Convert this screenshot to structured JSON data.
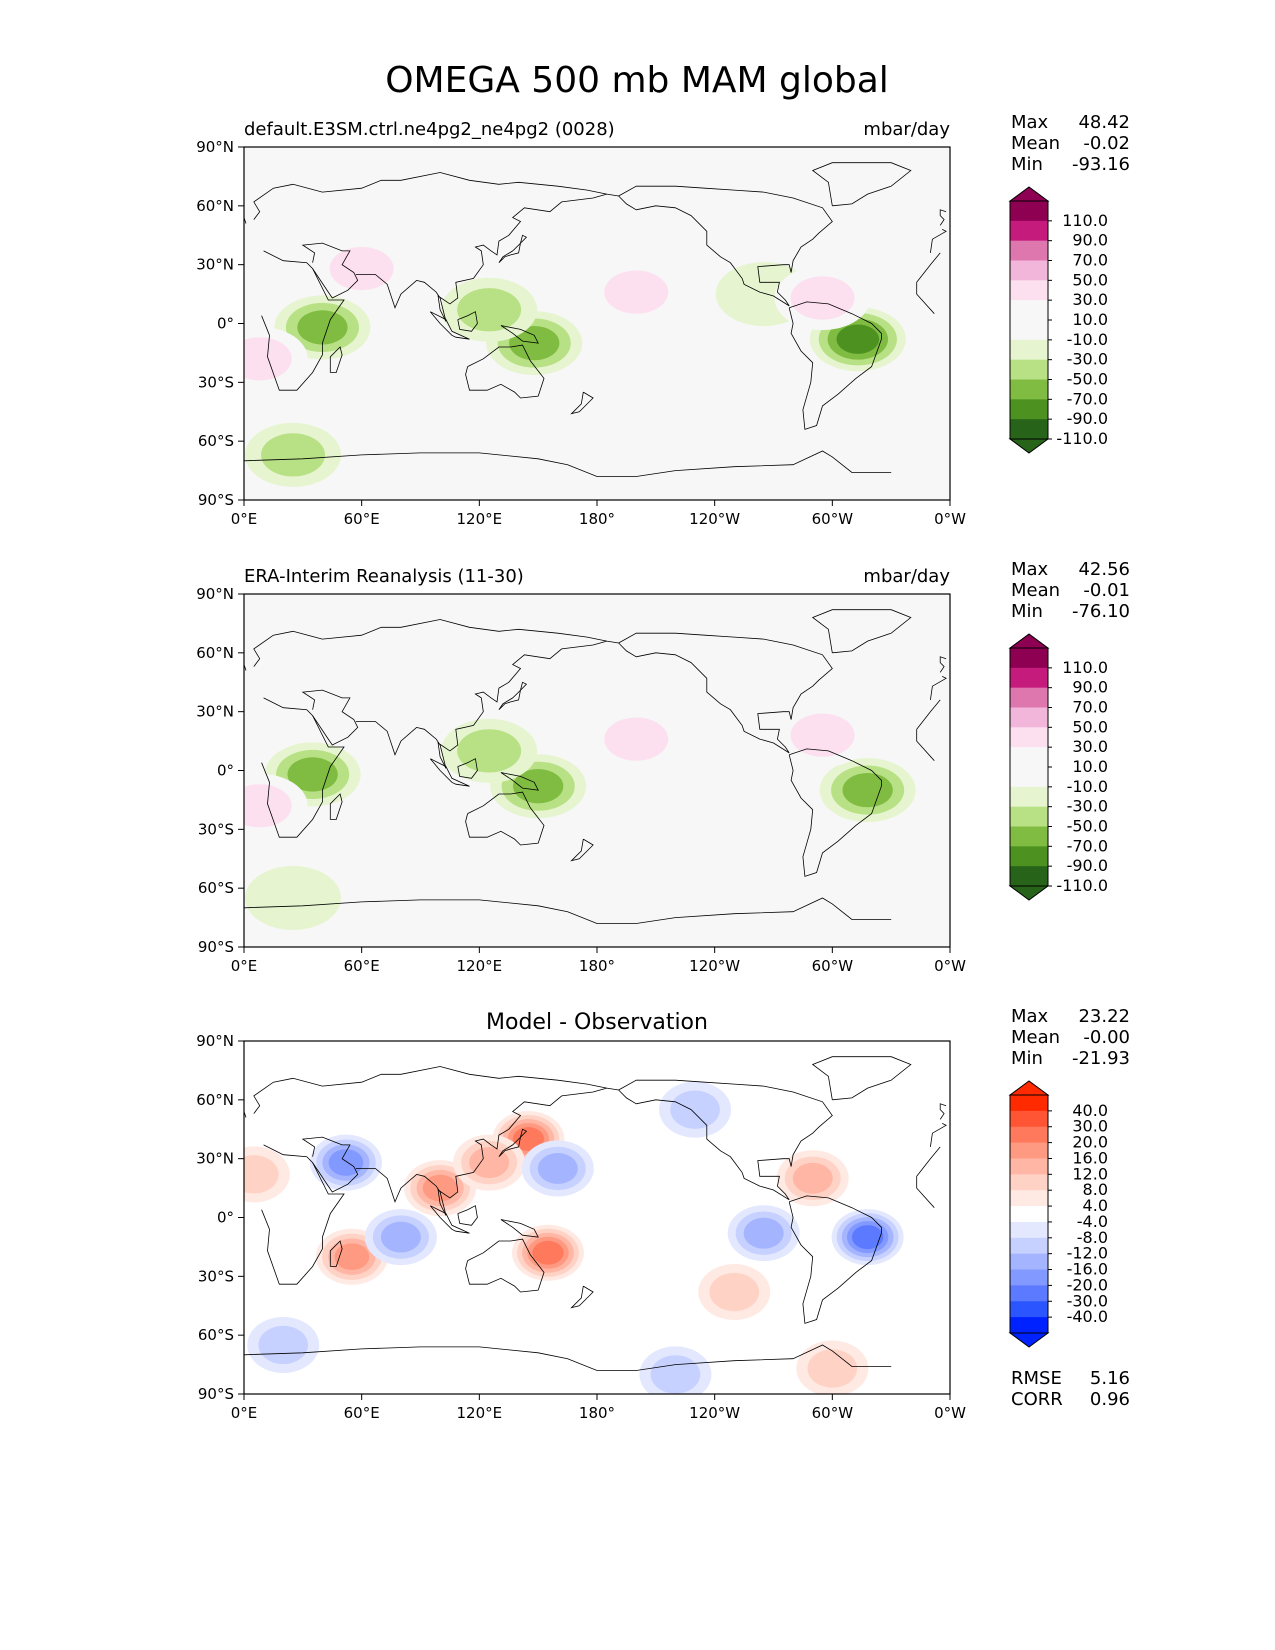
{
  "title": "OMEGA 500 mb MAM global",
  "colors": {
    "land_outline": "#000000",
    "background": "#f7f7f7",
    "diff_background": "#ffffff"
  },
  "lon_ticks": [
    "0°E",
    "60°E",
    "120°E",
    "180°",
    "120°W",
    "60°W",
    "0°W"
  ],
  "lat_ticks": [
    "90°N",
    "60°N",
    "30°N",
    "0°",
    "30°S",
    "60°S",
    "90°S"
  ],
  "chart_data": [
    {
      "type": "heatmap",
      "left_title": "default.E3SM.ctrl.ne4pg2_ne4pg2 (0028)",
      "center_title": "",
      "units": "mbar/day",
      "stats": [
        {
          "label": "Max",
          "value": "48.42"
        },
        {
          "label": "Mean",
          "value": "-0.02"
        },
        {
          "label": "Min",
          "value": "-93.16"
        }
      ],
      "colorbar": {
        "levels": [
          "110.0",
          "90.0",
          "70.0",
          "50.0",
          "30.0",
          "10.0",
          "-10.0",
          "-30.0",
          "-50.0",
          "-70.0",
          "-90.0",
          "-110.0"
        ],
        "colors": [
          "#8e0152",
          "#c51b7d",
          "#de77ae",
          "#f1b6da",
          "#fde0ef",
          "#f7f7f7",
          "#f7f7f7",
          "#e6f5d0",
          "#b8e186",
          "#7fbc41",
          "#4d9221",
          "#276419"
        ]
      },
      "fields": [
        {
          "lon": 40,
          "lat": -2,
          "value": -60
        },
        {
          "lon": 148,
          "lat": -10,
          "value": -55
        },
        {
          "lon": 313,
          "lat": -8,
          "value": -75
        },
        {
          "lon": 125,
          "lat": 7,
          "value": -40
        },
        {
          "lon": 25,
          "lat": -67,
          "value": -30
        },
        {
          "lon": 265,
          "lat": 15,
          "value": -18
        },
        {
          "lon": 200,
          "lat": 16,
          "value": 45
        },
        {
          "lon": 295,
          "lat": 13,
          "value": 42
        },
        {
          "lon": 8,
          "lat": -18,
          "value": 35
        },
        {
          "lon": 60,
          "lat": 28,
          "value": 30
        },
        {
          "lon": 210,
          "lat": -20,
          "value": 25
        },
        {
          "lon": 300,
          "lat": -75,
          "value": 25
        }
      ]
    },
    {
      "type": "heatmap",
      "left_title": "ERA-Interim Reanalysis (11-30)",
      "center_title": "",
      "units": "mbar/day",
      "stats": [
        {
          "label": "Max",
          "value": "42.56"
        },
        {
          "label": "Mean",
          "value": "-0.01"
        },
        {
          "label": "Min",
          "value": "-76.10"
        }
      ],
      "colorbar": {
        "levels": [
          "110.0",
          "90.0",
          "70.0",
          "50.0",
          "30.0",
          "10.0",
          "-10.0",
          "-30.0",
          "-50.0",
          "-70.0",
          "-90.0",
          "-110.0"
        ],
        "colors": [
          "#8e0152",
          "#c51b7d",
          "#de77ae",
          "#f1b6da",
          "#fde0ef",
          "#f7f7f7",
          "#f7f7f7",
          "#e6f5d0",
          "#b8e186",
          "#7fbc41",
          "#4d9221",
          "#276419"
        ]
      },
      "fields": [
        {
          "lon": 35,
          "lat": -2,
          "value": -55
        },
        {
          "lon": 150,
          "lat": -8,
          "value": -50
        },
        {
          "lon": 318,
          "lat": -10,
          "value": -58
        },
        {
          "lon": 125,
          "lat": 10,
          "value": -35
        },
        {
          "lon": 25,
          "lat": -65,
          "value": -25
        },
        {
          "lon": 200,
          "lat": 16,
          "value": 40
        },
        {
          "lon": 295,
          "lat": 18,
          "value": 38
        },
        {
          "lon": 8,
          "lat": -18,
          "value": 32
        },
        {
          "lon": 60,
          "lat": 28,
          "value": 28
        },
        {
          "lon": 210,
          "lat": -20,
          "value": 22
        },
        {
          "lon": 300,
          "lat": -75,
          "value": 22
        }
      ]
    },
    {
      "type": "heatmap",
      "left_title": "",
      "center_title": "Model - Observation",
      "units": "",
      "stats": [
        {
          "label": "Max",
          "value": "23.22"
        },
        {
          "label": "Mean",
          "value": "-0.00"
        },
        {
          "label": "Min",
          "value": "-21.93"
        }
      ],
      "extra_stats": [
        {
          "label": "RMSE",
          "value": "5.16"
        },
        {
          "label": "CORR",
          "value": "0.96"
        }
      ],
      "colorbar": {
        "levels": [
          "40.0",
          "30.0",
          "20.0",
          "16.0",
          "12.0",
          "8.0",
          "4.0",
          "-4.0",
          "-8.0",
          "-12.0",
          "-16.0",
          "-20.0",
          "-30.0",
          "-40.0"
        ],
        "colors": [
          "#ff2a00",
          "#ff5534",
          "#ff7a5c",
          "#ff9a82",
          "#ffb6a4",
          "#ffd2c6",
          "#ffe9e3",
          "#ffffff",
          "#e3e8ff",
          "#c6d1ff",
          "#a4b4ff",
          "#8299ff",
          "#5c7aff",
          "#2a55ff",
          "#0022ff"
        ]
      },
      "fields": [
        {
          "lon": 145,
          "lat": 40,
          "value": 22
        },
        {
          "lon": 155,
          "lat": -18,
          "value": 20
        },
        {
          "lon": 100,
          "lat": 15,
          "value": 18
        },
        {
          "lon": 55,
          "lat": -20,
          "value": 16
        },
        {
          "lon": 125,
          "lat": 28,
          "value": 12
        },
        {
          "lon": 290,
          "lat": 20,
          "value": 12
        },
        {
          "lon": 250,
          "lat": -38,
          "value": 10
        },
        {
          "lon": 300,
          "lat": -77,
          "value": 8
        },
        {
          "lon": 5,
          "lat": 22,
          "value": 8
        },
        {
          "lon": 52,
          "lat": 28,
          "value": -18
        },
        {
          "lon": 318,
          "lat": -10,
          "value": -20
        },
        {
          "lon": 160,
          "lat": 25,
          "value": -14
        },
        {
          "lon": 265,
          "lat": -8,
          "value": -12
        },
        {
          "lon": 80,
          "lat": -10,
          "value": -12
        },
        {
          "lon": 230,
          "lat": 55,
          "value": -9
        },
        {
          "lon": 20,
          "lat": -65,
          "value": -8
        },
        {
          "lon": 220,
          "lat": -80,
          "value": -8
        }
      ]
    }
  ]
}
